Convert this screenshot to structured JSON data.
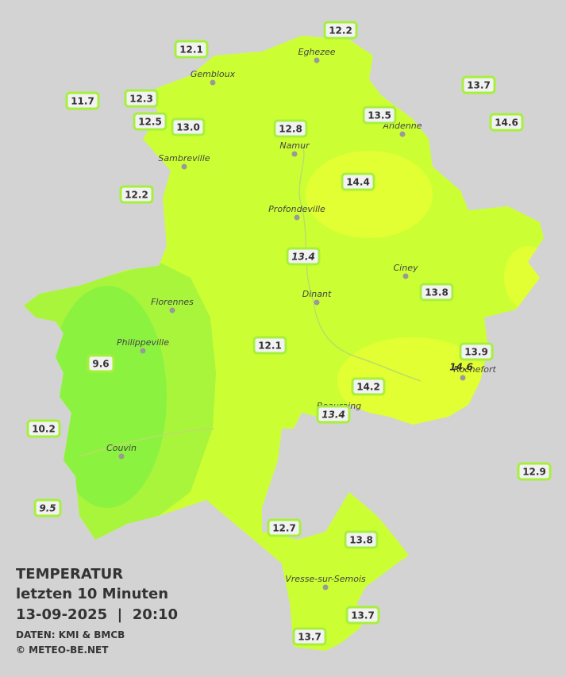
{
  "title": {
    "line1": "TEMPERATUR",
    "line2": "letzten 10 Minuten",
    "line3": "13-09-2025  |  20:10",
    "source": "DATEN: KMI & BMCB",
    "copyright": "© METEO-BE.NET"
  },
  "cities": [
    "Eghezee",
    "Gembloux",
    "Andenne",
    "Namur",
    "Sambreville",
    "Profondeville",
    "Ciney",
    "Dinant",
    "Florennes",
    "Philippeville",
    "Couvin",
    "Vresse-sur-Semois",
    "Rochefort",
    "Beauraing"
  ],
  "stations": [
    {
      "label": "12.2"
    },
    {
      "label": "12.1"
    },
    {
      "label": "11.7"
    },
    {
      "label": "12.3"
    },
    {
      "label": "12.5"
    },
    {
      "label": "13.0"
    },
    {
      "label": "12.8"
    },
    {
      "label": "13.5"
    },
    {
      "label": "13.7"
    },
    {
      "label": "14.6"
    },
    {
      "label": "14.4"
    },
    {
      "label": "12.2"
    },
    {
      "label": "13.4",
      "italic": true
    },
    {
      "label": "13.8"
    },
    {
      "label": "12.1"
    },
    {
      "label": "9.6"
    },
    {
      "label": "13.9"
    },
    {
      "label": "14.6",
      "italic": true
    },
    {
      "label": "14.2"
    },
    {
      "label": "13.4",
      "italic": true
    },
    {
      "label": "10.2"
    },
    {
      "label": "12.9"
    },
    {
      "label": "9.5",
      "italic": true
    },
    {
      "label": "12.7"
    },
    {
      "label": "13.8"
    },
    {
      "label": "13.7"
    },
    {
      "label": "13.7"
    }
  ]
}
